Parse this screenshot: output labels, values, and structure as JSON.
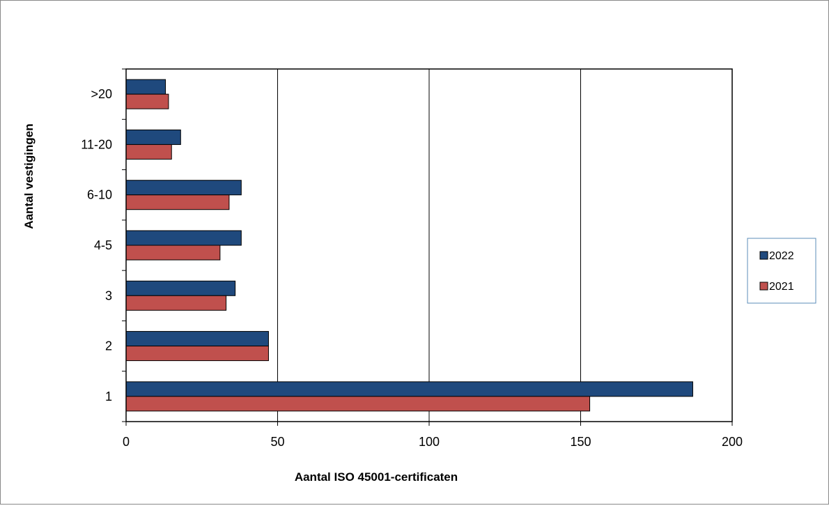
{
  "chart_data": {
    "type": "bar",
    "orientation": "horizontal",
    "title": "",
    "xlabel": "Aantal ISO 45001-certificaten",
    "ylabel": "Aantal vestigingen",
    "categories": [
      "1",
      "2",
      "3",
      "4-5",
      "6-10",
      "11-20",
      ">20"
    ],
    "series": [
      {
        "name": "2022",
        "color": "#1F497D",
        "values": [
          187,
          47,
          36,
          38,
          38,
          18,
          13
        ]
      },
      {
        "name": "2021",
        "color": "#C0504D",
        "values": [
          153,
          47,
          33,
          31,
          34,
          15,
          14
        ]
      }
    ],
    "xlim": [
      0,
      200
    ],
    "xticks": [
      0,
      50,
      100,
      150,
      200
    ],
    "xtick_labels": [
      "0",
      "50",
      "100",
      "150",
      "200"
    ],
    "grid": "vertical",
    "legend_position": "right"
  }
}
